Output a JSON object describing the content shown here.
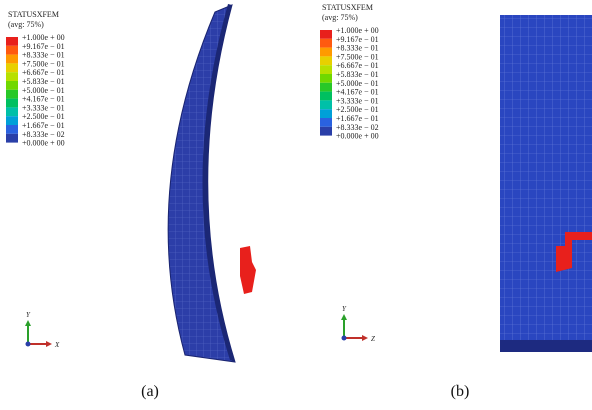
{
  "panels": [
    {
      "legend": {
        "title": "STATUSXFEM",
        "subtitle": "(avg: 75%)",
        "labels": [
          "+1.000e + 00",
          "+9.167e − 01",
          "+8.333e − 01",
          "+7.500e − 01",
          "+6.667e − 01",
          "+5.833e − 01",
          "+5.000e − 01",
          "+4.167e − 01",
          "+3.333e − 01",
          "+2.500e − 01",
          "+1.667e − 01",
          "+8.333e − 02",
          "+0.000e + 00"
        ]
      },
      "axes": {
        "vertical": "Y",
        "horizontal": "X"
      },
      "caption": "(a)"
    },
    {
      "legend": {
        "title": "STATUSXFEM",
        "subtitle": "(avg: 75%)",
        "labels": [
          "+1.000e + 00",
          "+9.167e − 01",
          "+8.333e − 01",
          "+7.500e − 01",
          "+6.667e − 01",
          "+5.833e − 01",
          "+5.000e − 01",
          "+4.167e − 01",
          "+3.333e − 01",
          "+2.500e − 01",
          "+1.667e − 01",
          "+8.333e − 02",
          "+0.000e + 00"
        ]
      },
      "axes": {
        "vertical": "Y",
        "horizontal": "Z"
      },
      "caption": "(b)"
    }
  ]
}
